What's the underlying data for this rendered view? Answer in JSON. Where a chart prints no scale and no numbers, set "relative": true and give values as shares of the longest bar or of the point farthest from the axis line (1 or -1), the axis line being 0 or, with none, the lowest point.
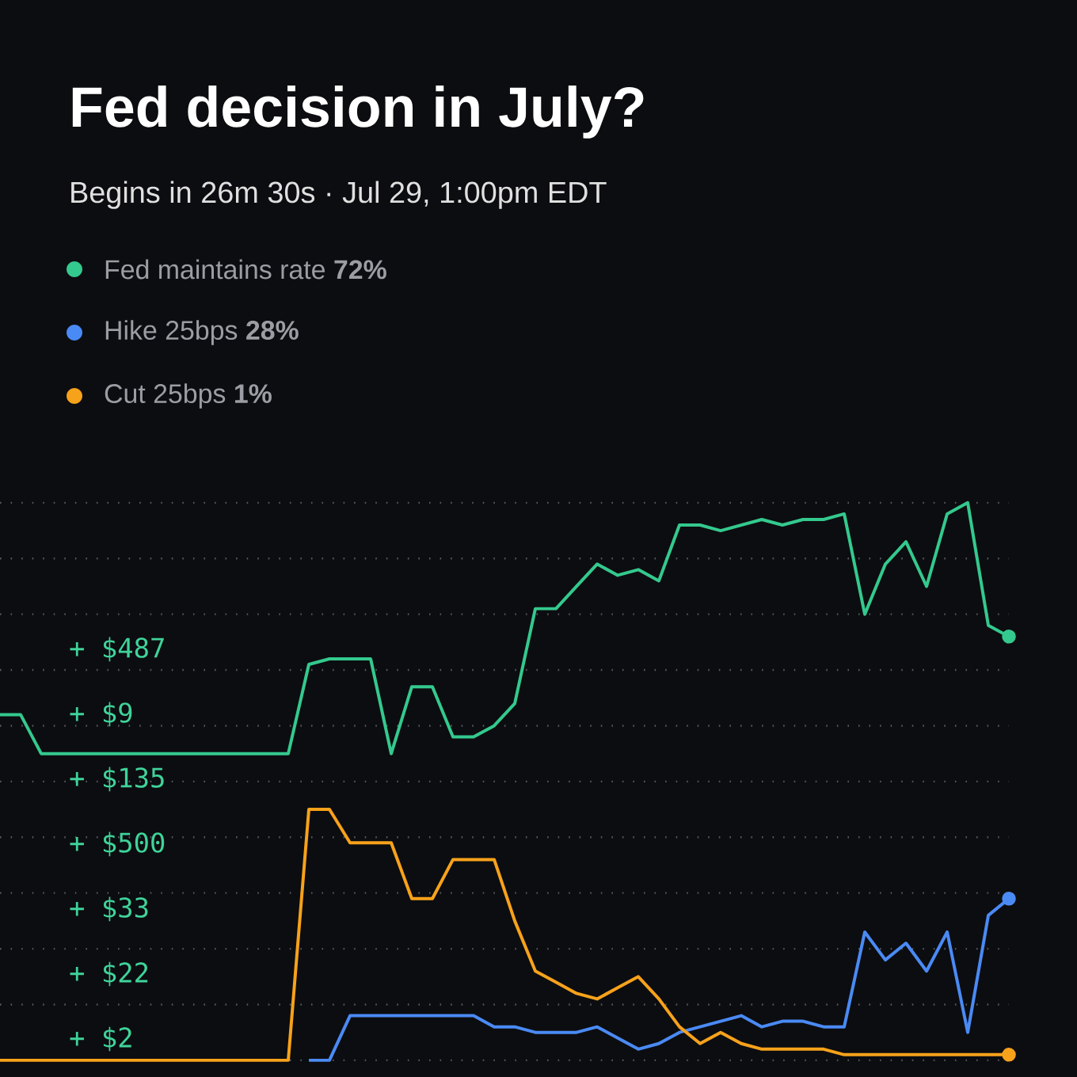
{
  "chart_data": {
    "type": "line",
    "title": "Fed decision in July?",
    "subtitle": "Begins in 26m 30s · Jul 29, 1:00pm EDT",
    "categories": [
      null,
      null,
      null,
      null,
      null,
      null,
      null,
      null,
      null,
      null,
      null,
      null,
      null,
      null,
      null,
      null,
      null,
      null,
      null,
      null,
      null,
      null,
      null,
      null,
      null,
      null,
      null,
      null,
      null,
      null,
      null,
      null,
      null,
      null,
      null,
      null,
      null,
      null,
      null,
      null,
      null,
      null,
      null,
      null,
      null,
      null,
      null,
      null,
      null,
      null
    ],
    "relative": true,
    "series": [
      {
        "name": "Fed maintains rate **72%**",
        "color": "#34c98e",
        "values": [
          0.62,
          0.62,
          0.55,
          0.55,
          0.55,
          0.55,
          0.55,
          0.55,
          0.55,
          0.55,
          0.55,
          0.55,
          0.55,
          0.55,
          0.55,
          0.71,
          0.72,
          0.72,
          0.72,
          0.55,
          0.67,
          0.67,
          0.58,
          0.58,
          0.6,
          0.64,
          0.81,
          0.81,
          0.85,
          0.89,
          0.87,
          0.88,
          0.86,
          0.96,
          0.96,
          0.95,
          0.96,
          0.97,
          0.96,
          0.97,
          0.97,
          0.98,
          0.8,
          0.89,
          0.93,
          0.85,
          0.98,
          1,
          0.78,
          0.76
        ]
      },
      {
        "name": "Hike 25bps **28%**",
        "color": "#4a8af4",
        "values": [
          null,
          null,
          null,
          null,
          null,
          null,
          null,
          null,
          null,
          null,
          null,
          null,
          null,
          null,
          null,
          0,
          0,
          0.08,
          0.08,
          0.08,
          0.08,
          0.08,
          0.08,
          0.08,
          0.06,
          0.06,
          0.05,
          0.05,
          0.05,
          0.06,
          0.04,
          0.02,
          0.03,
          0.05,
          0.06,
          0.07,
          0.08,
          0.06,
          0.07,
          0.07,
          0.06,
          0.06,
          0.23,
          0.18,
          0.21,
          0.16,
          0.23,
          0.05,
          0.26,
          0.29
        ]
      },
      {
        "name": "Cut 25bps **1%**",
        "color": "#f7a21b",
        "values": [
          0,
          0,
          0,
          0,
          0,
          0,
          0,
          0,
          0,
          0,
          0,
          0,
          0,
          0,
          0,
          0.45,
          0.45,
          0.39,
          0.39,
          0.39,
          0.29,
          0.29,
          0.36,
          0.36,
          0.36,
          0.25,
          0.16,
          0.14,
          0.12,
          0.11,
          0.13,
          0.15,
          0.11,
          0.06,
          0.03,
          0.05,
          0.03,
          0.02,
          0.02,
          0.02,
          0.02,
          0.01,
          0.01,
          0.01,
          0.01,
          0.01,
          0.01,
          0.01,
          0.01,
          0.01
        ]
      }
    ],
    "grid": "y",
    "legend": "top left",
    "line_style": "solid",
    "annotations": [
      "+ $487",
      "+ $9",
      "+ $135",
      "+ $500",
      "+ $33",
      "+ $22",
      "+ $2"
    ]
  }
}
